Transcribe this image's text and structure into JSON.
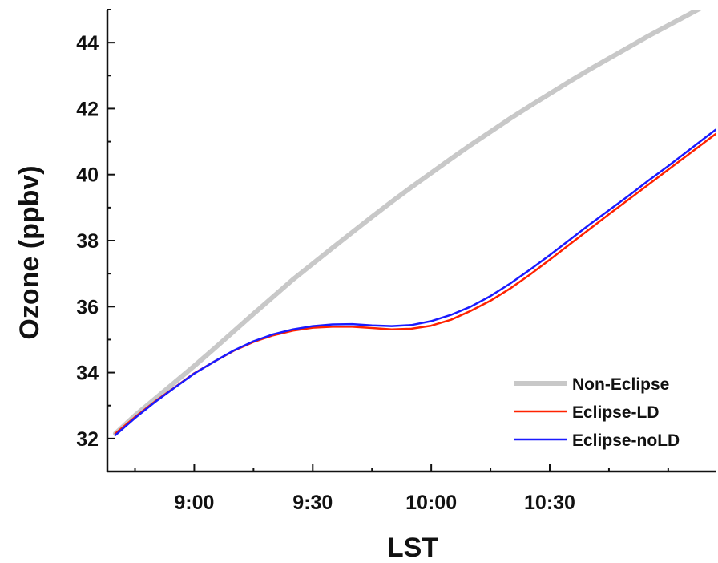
{
  "chart_data": {
    "type": "line",
    "xlabel": "LST",
    "ylabel": "Ozone (ppbv)",
    "x_unit": "local solar time (HH:MM)",
    "xlim": [
      "08:38",
      "11:12"
    ],
    "ylim": [
      31,
      45
    ],
    "x_ticks": [
      "9:00",
      "9:30",
      "10:00",
      "10:30"
    ],
    "y_ticks": [
      32,
      34,
      36,
      38,
      40,
      42,
      44
    ],
    "legend_position": "bottom-right",
    "grid": false,
    "x": [
      "08:40",
      "08:45",
      "08:50",
      "08:55",
      "09:00",
      "09:05",
      "09:10",
      "09:15",
      "09:20",
      "09:25",
      "09:30",
      "09:35",
      "09:40",
      "09:45",
      "09:50",
      "09:55",
      "10:00",
      "10:05",
      "10:10",
      "10:15",
      "10:20",
      "10:25",
      "10:30",
      "10:35",
      "10:40",
      "10:45",
      "10:50",
      "10:55",
      "11:00",
      "11:05",
      "11:10",
      "11:12"
    ],
    "series": [
      {
        "name": "Non-Eclipse",
        "color": "#c8c8c8",
        "values": [
          32.15,
          32.7,
          33.2,
          33.7,
          34.2,
          34.72,
          35.25,
          35.78,
          36.3,
          36.82,
          37.3,
          37.78,
          38.25,
          38.72,
          39.18,
          39.62,
          40.05,
          40.48,
          40.9,
          41.3,
          41.7,
          42.08,
          42.45,
          42.82,
          43.18,
          43.52,
          43.86,
          44.2,
          44.52,
          44.84,
          45.16,
          45.28
        ]
      },
      {
        "name": "Eclipse-LD",
        "color": "#ff2200",
        "values": [
          32.15,
          32.65,
          33.12,
          33.55,
          33.98,
          34.33,
          34.66,
          34.93,
          35.13,
          35.27,
          35.36,
          35.39,
          35.39,
          35.35,
          35.31,
          35.33,
          35.42,
          35.6,
          35.87,
          36.18,
          36.55,
          36.97,
          37.42,
          37.88,
          38.34,
          38.8,
          39.25,
          39.7,
          40.15,
          40.6,
          41.05,
          41.23
        ]
      },
      {
        "name": "Eclipse-noLD",
        "color": "#1a1aff",
        "values": [
          32.1,
          32.62,
          33.1,
          33.54,
          33.97,
          34.33,
          34.67,
          34.95,
          35.16,
          35.31,
          35.41,
          35.46,
          35.47,
          35.43,
          35.41,
          35.44,
          35.56,
          35.75,
          36.0,
          36.32,
          36.7,
          37.12,
          37.56,
          38.02,
          38.48,
          38.92,
          39.36,
          39.82,
          40.26,
          40.72,
          41.18,
          41.36
        ]
      }
    ]
  }
}
